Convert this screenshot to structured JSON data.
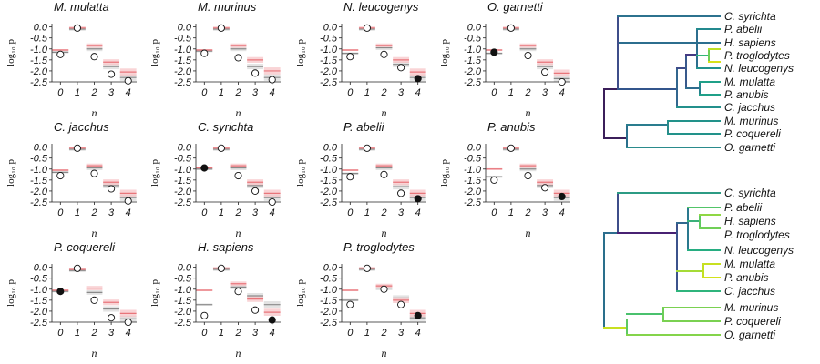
{
  "chart_data": {
    "type": "scatter",
    "xlabel": "n",
    "ylabel": "log₁₀ p",
    "x_ticks": [
      "0",
      "1",
      "2",
      "3",
      "4"
    ],
    "y_ticks": [
      "0.0",
      "-0.5",
      "-1.0",
      "-1.5",
      "-2.0",
      "-2.5"
    ],
    "xlim": [
      -0.5,
      4.5
    ],
    "ylim": [
      -2.5,
      0.15
    ],
    "panels": [
      {
        "title": "M. mulatta",
        "points": [
          -1.25,
          -0.05,
          -1.35,
          -2.15,
          -2.45
        ],
        "filled_index": -1,
        "red_lines": [
          -1.05,
          -0.05,
          -0.85,
          -1.6,
          -2.05
        ],
        "gray_lines": [
          -1.15,
          -0.1,
          -1.0,
          -1.8,
          -2.3
        ]
      },
      {
        "title": "M. murinus",
        "points": [
          -1.2,
          -0.05,
          -1.4,
          -2.1,
          -2.4
        ],
        "filled_index": -1,
        "red_lines": [
          -1.05,
          -0.05,
          -0.85,
          -1.5,
          -2.0
        ],
        "gray_lines": [
          -1.1,
          -0.1,
          -1.0,
          -1.8,
          -2.3
        ]
      },
      {
        "title": "N. leucogenys",
        "points": [
          -1.35,
          -0.05,
          -1.25,
          -1.85,
          -2.35
        ],
        "filled_index": 4,
        "red_lines": [
          -1.05,
          -0.05,
          -0.85,
          -1.5,
          -2.05
        ],
        "gray_lines": [
          -1.2,
          -0.1,
          -0.95,
          -1.7,
          -2.3
        ]
      },
      {
        "title": "O. garnetti",
        "points": [
          -1.15,
          -0.05,
          -1.3,
          -2.05,
          -2.5
        ],
        "filled_index": 0,
        "red_lines": [
          -1.05,
          -0.05,
          -0.85,
          -1.6,
          -2.1
        ],
        "gray_lines": [
          -1.2,
          -0.1,
          -1.0,
          -1.8,
          -2.35
        ]
      },
      {
        "title": "C. jacchus",
        "points": [
          -1.3,
          -0.05,
          -1.2,
          -1.9,
          -2.45
        ],
        "filled_index": -1,
        "red_lines": [
          -1.05,
          -0.05,
          -0.85,
          -1.6,
          -2.1
        ],
        "gray_lines": [
          -1.15,
          -0.1,
          -0.95,
          -1.75,
          -2.3
        ]
      },
      {
        "title": "C. syrichta",
        "points": [
          -0.95,
          -0.05,
          -1.3,
          -2.0,
          -2.5
        ],
        "filled_index": 0,
        "red_lines": [
          -0.95,
          -0.05,
          -0.85,
          -1.6,
          -2.1
        ],
        "gray_lines": [
          -1.0,
          -0.1,
          -0.95,
          -1.75,
          -2.3
        ]
      },
      {
        "title": "P. abelii",
        "points": [
          -1.35,
          -0.05,
          -1.25,
          -2.1,
          -2.35
        ],
        "filled_index": 4,
        "red_lines": [
          -1.05,
          -0.05,
          -0.85,
          -1.6,
          -2.1
        ],
        "gray_lines": [
          -1.2,
          -0.1,
          -0.95,
          -1.8,
          -2.3
        ]
      },
      {
        "title": "P. anubis",
        "points": [
          -1.5,
          -0.05,
          -1.3,
          -1.85,
          -2.25
        ],
        "filled_index": 4,
        "red_lines": [
          -1.0,
          -0.05,
          -0.85,
          -1.6,
          -2.1
        ],
        "gray_lines": [
          -1.35,
          -0.1,
          -1.0,
          -1.75,
          -2.3
        ]
      },
      {
        "title": "P. coquereli",
        "points": [
          -1.1,
          -0.05,
          -1.5,
          -2.3,
          -2.6
        ],
        "filled_index": 0,
        "red_lines": [
          -1.05,
          -0.1,
          -0.95,
          -1.6,
          -2.1
        ],
        "gray_lines": [
          -1.1,
          -0.15,
          -1.15,
          -1.9,
          -2.35
        ]
      },
      {
        "title": "H. sapiens",
        "points": [
          -2.2,
          -0.05,
          -1.1,
          -1.95,
          -2.4
        ],
        "filled_index": 4,
        "red_lines": [
          -1.05,
          -0.05,
          -0.75,
          -1.45,
          -2.05
        ],
        "gray_lines": [
          -1.7,
          -0.1,
          -0.9,
          -1.3,
          -1.7
        ]
      },
      {
        "title": "P. troglodytes",
        "points": [
          -1.7,
          -0.05,
          -1.0,
          -1.7,
          -2.2
        ],
        "filled_index": 4,
        "red_lines": [
          -1.05,
          -0.05,
          -0.85,
          -1.5,
          -2.1
        ],
        "gray_lines": [
          -1.5,
          -0.1,
          -0.95,
          -1.4,
          -2.3
        ]
      }
    ],
    "trees": [
      {
        "leaves": [
          "C. syrichta",
          "P. abelii",
          "H. sapiens",
          "P. troglodytes",
          "N. leucogenys",
          "M. mulatta",
          "P. anubis",
          "C. jacchus",
          "M. murinus",
          "P. coquereli",
          "O. garnetti"
        ],
        "colormap": "viridis"
      },
      {
        "leaves": [
          "C. syrichta",
          "P. abelii",
          "H. sapiens",
          "P. troglodytes",
          "N. leucogenys",
          "M. mulatta",
          "P. anubis",
          "C. jacchus",
          "M. murinus",
          "P. coquereli",
          "O. garnetti"
        ],
        "colormap": "viridis"
      }
    ],
    "colors": {
      "red_line": "#e8757a",
      "red_band": "#f6c2c4",
      "gray_line": "#8a8a8a",
      "gray_band": "#dedede"
    }
  }
}
